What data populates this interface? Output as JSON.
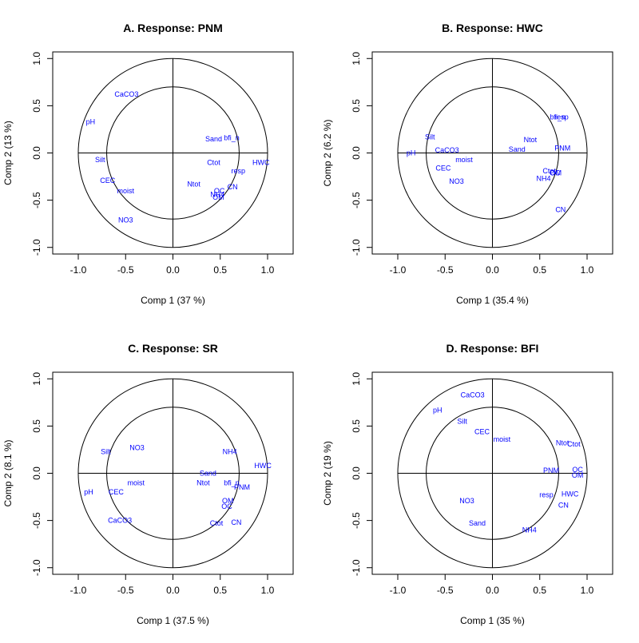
{
  "colors": {
    "axis": "#000000",
    "labels": "#0000ff",
    "background": "#ffffff"
  },
  "chart_data": [
    {
      "type": "scatter",
      "title": "A. Response: PNM",
      "xlabel": "Comp 1 (37 %)",
      "ylabel": "Comp 2 (13 %)",
      "xlim": [
        -1.27,
        1.27
      ],
      "ylim": [
        -1.07,
        1.07
      ],
      "xticks": [
        -1.0,
        -0.5,
        0.0,
        0.5,
        1.0
      ],
      "yticks": [
        -1.0,
        -0.5,
        0.0,
        0.5,
        1.0
      ],
      "xtick_labels": [
        "-1.0",
        "-0.5",
        "0.0",
        "0.5",
        "1.0"
      ],
      "ytick_labels": [
        "-1.0",
        "-0.5",
        "0.0",
        "0.5",
        "1.0"
      ],
      "circles": [
        1.0,
        0.7
      ],
      "points": [
        {
          "label": "CaCO3",
          "x": -0.49,
          "y": 0.62
        },
        {
          "label": "pH",
          "x": -0.87,
          "y": 0.33
        },
        {
          "label": "Sand",
          "x": 0.43,
          "y": 0.15
        },
        {
          "label": "bfi_n",
          "x": 0.62,
          "y": 0.16
        },
        {
          "label": "Silt",
          "x": -0.77,
          "y": -0.07
        },
        {
          "label": "Ctot",
          "x": 0.43,
          "y": -0.1
        },
        {
          "label": "HWC",
          "x": 0.93,
          "y": -0.1
        },
        {
          "label": "resp",
          "x": 0.69,
          "y": -0.19
        },
        {
          "label": "CEC",
          "x": -0.69,
          "y": -0.29
        },
        {
          "label": "Ntot",
          "x": 0.22,
          "y": -0.33
        },
        {
          "label": "CN",
          "x": 0.63,
          "y": -0.36
        },
        {
          "label": "moist",
          "x": -0.5,
          "y": -0.4
        },
        {
          "label": "OC",
          "x": 0.49,
          "y": -0.4
        },
        {
          "label": "NH4",
          "x": 0.47,
          "y": -0.44
        },
        {
          "label": "OM",
          "x": 0.48,
          "y": -0.47
        },
        {
          "label": "NO3",
          "x": -0.5,
          "y": -0.71
        }
      ]
    },
    {
      "type": "scatter",
      "title": "B. Response: HWC",
      "xlabel": "Comp 1 (35.4 %)",
      "ylabel": "Comp 2 (6.2 %)",
      "xlim": [
        -1.27,
        1.27
      ],
      "ylim": [
        -1.07,
        1.07
      ],
      "xticks": [
        -1.0,
        -0.5,
        0.0,
        0.5,
        1.0
      ],
      "yticks": [
        -1.0,
        -0.5,
        0.0,
        0.5,
        1.0
      ],
      "xtick_labels": [
        "-1.0",
        "-0.5",
        "0.0",
        "0.5",
        "1.0"
      ],
      "ytick_labels": [
        "-1.0",
        "-0.5",
        "0.0",
        "0.5",
        "1.0"
      ],
      "circles": [
        1.0,
        0.7
      ],
      "points": [
        {
          "label": "bfi_n",
          "x": 0.69,
          "y": 0.38
        },
        {
          "label": "resp",
          "x": 0.73,
          "y": 0.38
        },
        {
          "label": "Silt",
          "x": -0.66,
          "y": 0.17
        },
        {
          "label": "Ntot",
          "x": 0.4,
          "y": 0.14
        },
        {
          "label": "pH",
          "x": -0.86,
          "y": 0.0
        },
        {
          "label": "CaCO3",
          "x": -0.48,
          "y": 0.03
        },
        {
          "label": "Sand",
          "x": 0.26,
          "y": 0.04
        },
        {
          "label": "PNM",
          "x": 0.74,
          "y": 0.05
        },
        {
          "label": "moist",
          "x": -0.3,
          "y": -0.07
        },
        {
          "label": "CEC",
          "x": -0.52,
          "y": -0.16
        },
        {
          "label": "Ctot",
          "x": 0.6,
          "y": -0.19
        },
        {
          "label": "OC",
          "x": 0.66,
          "y": -0.21
        },
        {
          "label": "OM",
          "x": 0.67,
          "y": -0.21
        },
        {
          "label": "NH4",
          "x": 0.54,
          "y": -0.27
        },
        {
          "label": "NO3",
          "x": -0.38,
          "y": -0.3
        },
        {
          "label": "CN",
          "x": 0.72,
          "y": -0.6
        }
      ]
    },
    {
      "type": "scatter",
      "title": "C. Response: SR",
      "xlabel": "Comp 1 (37.5 %)",
      "ylabel": "Comp 2 (8.1 %)",
      "xlim": [
        -1.27,
        1.27
      ],
      "ylim": [
        -1.07,
        1.07
      ],
      "xticks": [
        -1.0,
        -0.5,
        0.0,
        0.5,
        1.0
      ],
      "yticks": [
        -1.0,
        -0.5,
        0.0,
        0.5,
        1.0
      ],
      "xtick_labels": [
        "-1.0",
        "-0.5",
        "0.0",
        "0.5",
        "1.0"
      ],
      "ytick_labels": [
        "-1.0",
        "-0.5",
        "0.0",
        "0.5",
        "1.0"
      ],
      "circles": [
        1.0,
        0.7
      ],
      "points": [
        {
          "label": "NO3",
          "x": -0.38,
          "y": 0.27
        },
        {
          "label": "NH4",
          "x": 0.6,
          "y": 0.23
        },
        {
          "label": "Silt",
          "x": -0.71,
          "y": 0.23
        },
        {
          "label": "HWC",
          "x": 0.95,
          "y": 0.08
        },
        {
          "label": "Sand",
          "x": 0.37,
          "y": 0.0
        },
        {
          "label": "moist",
          "x": -0.39,
          "y": -0.1
        },
        {
          "label": "Ntot",
          "x": 0.32,
          "y": -0.1
        },
        {
          "label": "bfi_n",
          "x": 0.62,
          "y": -0.1
        },
        {
          "label": "PNM",
          "x": 0.73,
          "y": -0.15
        },
        {
          "label": "pH",
          "x": -0.89,
          "y": -0.2
        },
        {
          "label": "CEC",
          "x": -0.6,
          "y": -0.2
        },
        {
          "label": "OM",
          "x": 0.58,
          "y": -0.29
        },
        {
          "label": "OC",
          "x": 0.57,
          "y": -0.35
        },
        {
          "label": "CaCO3",
          "x": -0.56,
          "y": -0.5
        },
        {
          "label": "Ctot",
          "x": 0.46,
          "y": -0.53
        },
        {
          "label": "CN",
          "x": 0.67,
          "y": -0.52
        }
      ]
    },
    {
      "type": "scatter",
      "title": "D. Response: BFI",
      "xlabel": "Comp 1 (35 %)",
      "ylabel": "Comp 2 (19 %)",
      "xlim": [
        -1.27,
        1.27
      ],
      "ylim": [
        -1.07,
        1.07
      ],
      "xticks": [
        -1.0,
        -0.5,
        0.0,
        0.5,
        1.0
      ],
      "yticks": [
        -1.0,
        -0.5,
        0.0,
        0.5,
        1.0
      ],
      "xtick_labels": [
        "-1.0",
        "-0.5",
        "0.0",
        "0.5",
        "1.0"
      ],
      "ytick_labels": [
        "-1.0",
        "-0.5",
        "0.0",
        "0.5",
        "1.0"
      ],
      "circles": [
        1.0,
        0.7
      ],
      "points": [
        {
          "label": "CaCO3",
          "x": -0.21,
          "y": 0.83
        },
        {
          "label": "pH",
          "x": -0.58,
          "y": 0.67
        },
        {
          "label": "Silt",
          "x": -0.32,
          "y": 0.55
        },
        {
          "label": "CEC",
          "x": -0.11,
          "y": 0.44
        },
        {
          "label": "moist",
          "x": 0.1,
          "y": 0.36
        },
        {
          "label": "Ntot",
          "x": 0.74,
          "y": 0.32
        },
        {
          "label": "Ctot",
          "x": 0.86,
          "y": 0.31
        },
        {
          "label": "PNM",
          "x": 0.62,
          "y": 0.03
        },
        {
          "label": "OC",
          "x": 0.9,
          "y": 0.04
        },
        {
          "label": "OM",
          "x": 0.9,
          "y": -0.02
        },
        {
          "label": "resp",
          "x": 0.57,
          "y": -0.23
        },
        {
          "label": "HWC",
          "x": 0.82,
          "y": -0.22
        },
        {
          "label": "NO3",
          "x": -0.27,
          "y": -0.29
        },
        {
          "label": "CN",
          "x": 0.75,
          "y": -0.34
        },
        {
          "label": "Sand",
          "x": -0.16,
          "y": -0.53
        },
        {
          "label": "NH4",
          "x": 0.39,
          "y": -0.6
        }
      ]
    }
  ]
}
